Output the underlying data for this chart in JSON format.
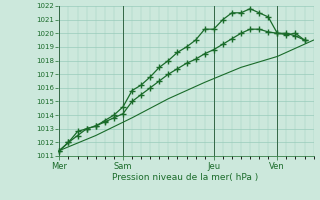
{
  "xlabel": "Pression niveau de la mer( hPa )",
  "bg_color": "#cce8dc",
  "grid_color": "#99ccbb",
  "line_color": "#1a6b2a",
  "vline_color": "#336644",
  "ylim": [
    1011,
    1022
  ],
  "yticks": [
    1011,
    1012,
    1013,
    1014,
    1015,
    1016,
    1017,
    1018,
    1019,
    1020,
    1021,
    1022
  ],
  "day_labels": [
    "Mer",
    "Sam",
    "Jeu",
    "Ven"
  ],
  "day_positions": [
    0.0,
    3.5,
    8.5,
    12.0
  ],
  "xlim": [
    -0.1,
    14.0
  ],
  "line1_x": [
    0.0,
    0.5,
    1.0,
    1.5,
    2.0,
    2.5,
    3.0,
    3.5,
    4.0,
    4.5,
    5.0,
    5.5,
    6.0,
    6.5,
    7.0,
    7.5,
    8.0,
    8.5,
    9.0,
    9.5,
    10.0,
    10.5,
    11.0,
    11.5,
    12.0,
    12.5,
    13.0,
    13.5
  ],
  "line1_y": [
    1011.4,
    1012.0,
    1012.5,
    1013.0,
    1013.2,
    1013.5,
    1013.8,
    1014.1,
    1015.0,
    1015.5,
    1016.0,
    1016.5,
    1017.0,
    1017.4,
    1017.8,
    1018.1,
    1018.5,
    1018.8,
    1019.2,
    1019.6,
    1020.0,
    1020.3,
    1020.3,
    1020.1,
    1020.0,
    1020.0,
    1019.8,
    1019.5
  ],
  "line2_x": [
    0.0,
    0.5,
    1.0,
    1.5,
    2.0,
    2.5,
    3.0,
    3.5,
    4.0,
    4.5,
    5.0,
    5.5,
    6.0,
    6.5,
    7.0,
    7.5,
    8.0,
    8.5,
    9.0,
    9.5,
    10.0,
    10.5,
    11.0,
    11.5,
    12.0,
    12.5,
    13.0,
    13.5
  ],
  "line2_y": [
    1011.4,
    1012.0,
    1012.8,
    1013.0,
    1013.2,
    1013.6,
    1014.0,
    1014.6,
    1015.8,
    1016.2,
    1016.8,
    1017.5,
    1018.0,
    1018.6,
    1019.0,
    1019.5,
    1020.3,
    1020.3,
    1021.0,
    1021.5,
    1021.5,
    1021.8,
    1021.5,
    1021.2,
    1020.0,
    1019.9,
    1020.0,
    1019.5
  ],
  "line3_x": [
    0.0,
    2.0,
    4.0,
    6.0,
    8.0,
    10.0,
    12.0,
    14.0
  ],
  "line3_y": [
    1011.4,
    1012.5,
    1013.8,
    1015.2,
    1016.4,
    1017.5,
    1018.3,
    1019.5
  ]
}
